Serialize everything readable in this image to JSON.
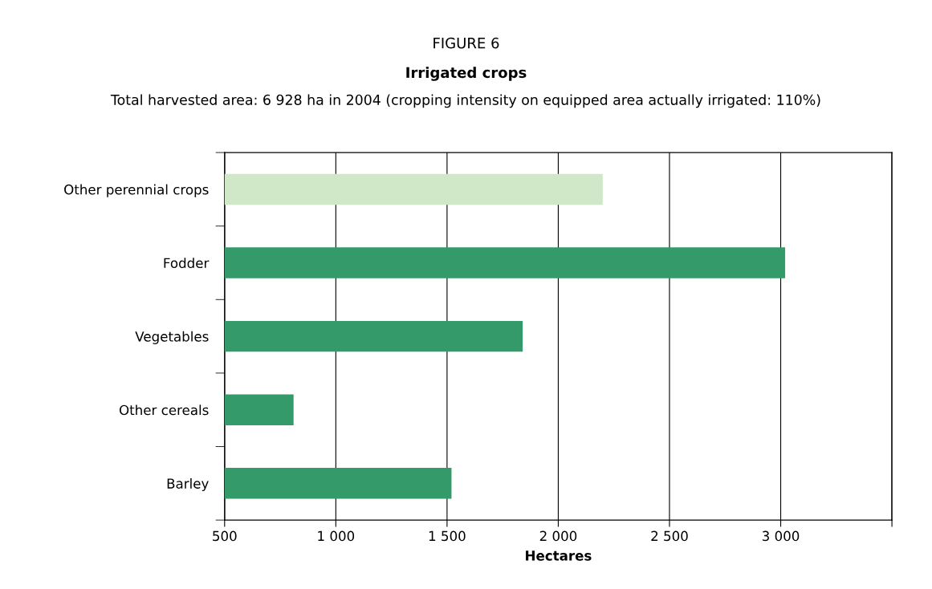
{
  "chart_data": {
    "type": "bar",
    "orientation": "horizontal",
    "title": "Irrigated crops",
    "subtitle": "Total harvested area: 6 928 ha in 2004 (cropping intensity on equipped area actually irrigated: 110%)",
    "annotations": [
      "FIGURE 6"
    ],
    "xlabel": "Hectares",
    "categories": [
      "Other perennial crops",
      "Fodder",
      "Vegetables",
      "Other cereals",
      "Barley"
    ],
    "values": [
      2200,
      3020,
      1840,
      810,
      1520
    ],
    "colors": [
      "#d0e8c8",
      "#359a6a",
      "#359a6a",
      "#359a6a",
      "#359a6a"
    ],
    "xlim": [
      500,
      3500
    ],
    "xticks": [
      500,
      {
        "value": 1000,
        "label": "1 000"
      },
      {
        "value": 1500,
        "label": "1 500"
      },
      {
        "value": 2000,
        "label": "2 000"
      },
      {
        "value": 2500,
        "label": "2 500"
      },
      {
        "value": 3000,
        "label": "3 000"
      },
      {
        "value": 3500,
        "label": null
      }
    ],
    "grid": "x"
  }
}
